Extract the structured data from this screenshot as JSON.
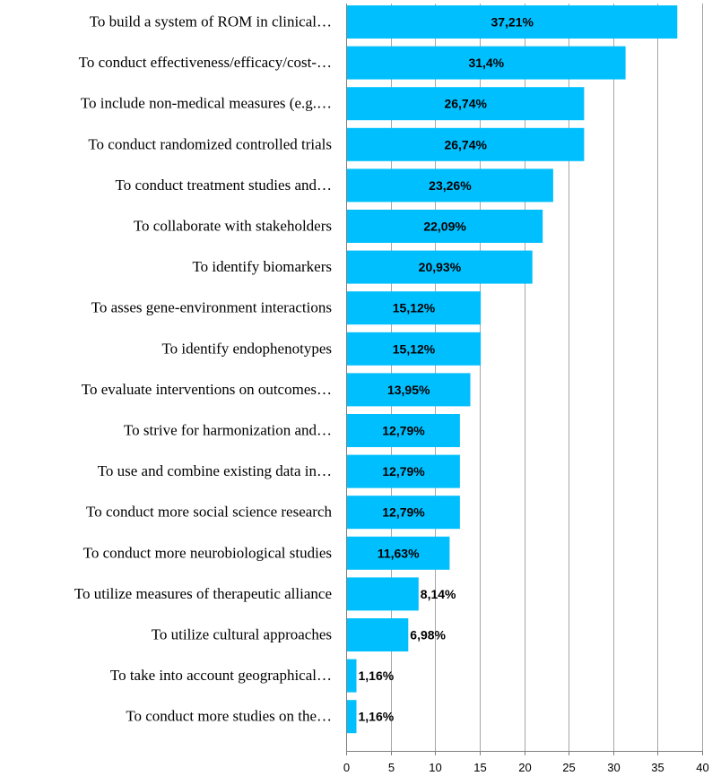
{
  "chart_data": {
    "type": "bar",
    "orientation": "horizontal",
    "categories": [
      "To build a system of ROM in clinical…",
      "To conduct effectiveness/efficacy/cost-…",
      "To include non-medical measures (e.g.…",
      "To conduct randomized controlled trials",
      "To conduct treatment studies and…",
      "To collaborate with stakeholders",
      "To identify biomarkers",
      "To asses gene-environment interactions",
      "To identify endophenotypes",
      "To evaluate interventions on outcomes…",
      "To strive for harmonization and…",
      "To use and combine existing data in…",
      "To conduct more social science research",
      "To conduct more neurobiological studies",
      "To utilize measures of therapeutic alliance",
      "To utilize cultural approaches",
      "To take into account geographical…",
      "To conduct more studies on the…"
    ],
    "values": [
      37.21,
      31.4,
      26.74,
      26.74,
      23.26,
      22.09,
      20.93,
      15.12,
      15.12,
      13.95,
      12.79,
      12.79,
      12.79,
      11.63,
      8.14,
      6.98,
      1.16,
      1.16
    ],
    "value_labels": [
      "37,21%",
      "31,4%",
      "26,74%",
      "26,74%",
      "23,26%",
      "22,09%",
      "20,93%",
      "15,12%",
      "15,12%",
      "13,95%",
      "12,79%",
      "12,79%",
      "12,79%",
      "11,63%",
      "8,14%",
      "6,98%",
      "1,16%",
      "1,16%"
    ],
    "xlim": [
      0,
      40
    ],
    "xticks": [
      0,
      5,
      10,
      15,
      20,
      25,
      30,
      35,
      40
    ],
    "xtick_labels": [
      "0",
      "5",
      "10",
      "15",
      "20",
      "25",
      "30",
      "35",
      "40"
    ],
    "grid": true,
    "bar_color": "#00bfff",
    "title": "",
    "xlabel": "",
    "ylabel": ""
  }
}
